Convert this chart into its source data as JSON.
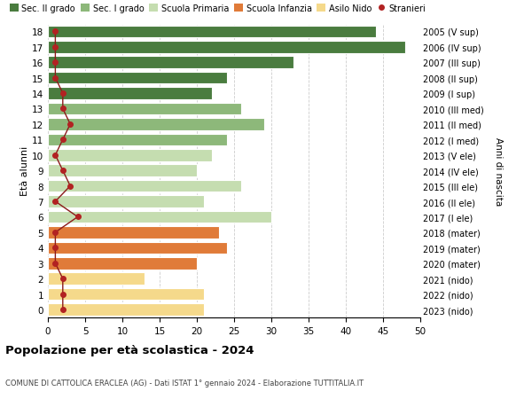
{
  "ages": [
    18,
    17,
    16,
    15,
    14,
    13,
    12,
    11,
    10,
    9,
    8,
    7,
    6,
    5,
    4,
    3,
    2,
    1,
    0
  ],
  "years": [
    "2005 (V sup)",
    "2006 (IV sup)",
    "2007 (III sup)",
    "2008 (II sup)",
    "2009 (I sup)",
    "2010 (III med)",
    "2011 (II med)",
    "2012 (I med)",
    "2013 (V ele)",
    "2014 (IV ele)",
    "2015 (III ele)",
    "2016 (II ele)",
    "2017 (I ele)",
    "2018 (mater)",
    "2019 (mater)",
    "2020 (mater)",
    "2021 (nido)",
    "2022 (nido)",
    "2023 (nido)"
  ],
  "bar_values": [
    44,
    48,
    33,
    24,
    22,
    26,
    29,
    24,
    22,
    20,
    26,
    21,
    30,
    23,
    24,
    20,
    13,
    21,
    21
  ],
  "bar_colors": [
    "#4a7c3f",
    "#4a7c3f",
    "#4a7c3f",
    "#4a7c3f",
    "#4a7c3f",
    "#8db87a",
    "#8db87a",
    "#8db87a",
    "#c5ddb0",
    "#c5ddb0",
    "#c5ddb0",
    "#c5ddb0",
    "#c5ddb0",
    "#e07b39",
    "#e07b39",
    "#e07b39",
    "#f5d98b",
    "#f5d98b",
    "#f5d98b"
  ],
  "stranieri_values": [
    1,
    1,
    1,
    1,
    2,
    2,
    3,
    2,
    1,
    2,
    3,
    1,
    4,
    1,
    1,
    1,
    2,
    2,
    2
  ],
  "legend_labels": [
    "Sec. II grado",
    "Sec. I grado",
    "Scuola Primaria",
    "Scuola Infanzia",
    "Asilo Nido",
    "Stranieri"
  ],
  "legend_colors": [
    "#4a7c3f",
    "#8db87a",
    "#c5ddb0",
    "#e07b39",
    "#f5d98b",
    "#b22222"
  ],
  "title": "Popolazione per età scolastica - 2024",
  "subtitle": "COMUNE DI CATTOLICA ERACLEA (AG) - Dati ISTAT 1° gennaio 2024 - Elaborazione TUTTITALIA.IT",
  "ylabel_left": "Età alunni",
  "ylabel_right": "Anni di nascita",
  "xlim": [
    0,
    50
  ],
  "xticks": [
    0,
    5,
    10,
    15,
    20,
    25,
    30,
    35,
    40,
    45,
    50
  ],
  "bg_color": "#ffffff",
  "grid_color": "#cccccc",
  "bar_edge_color": "#ffffff",
  "stranieri_line_color": "#8b1a1a",
  "stranieri_dot_color": "#b22222"
}
